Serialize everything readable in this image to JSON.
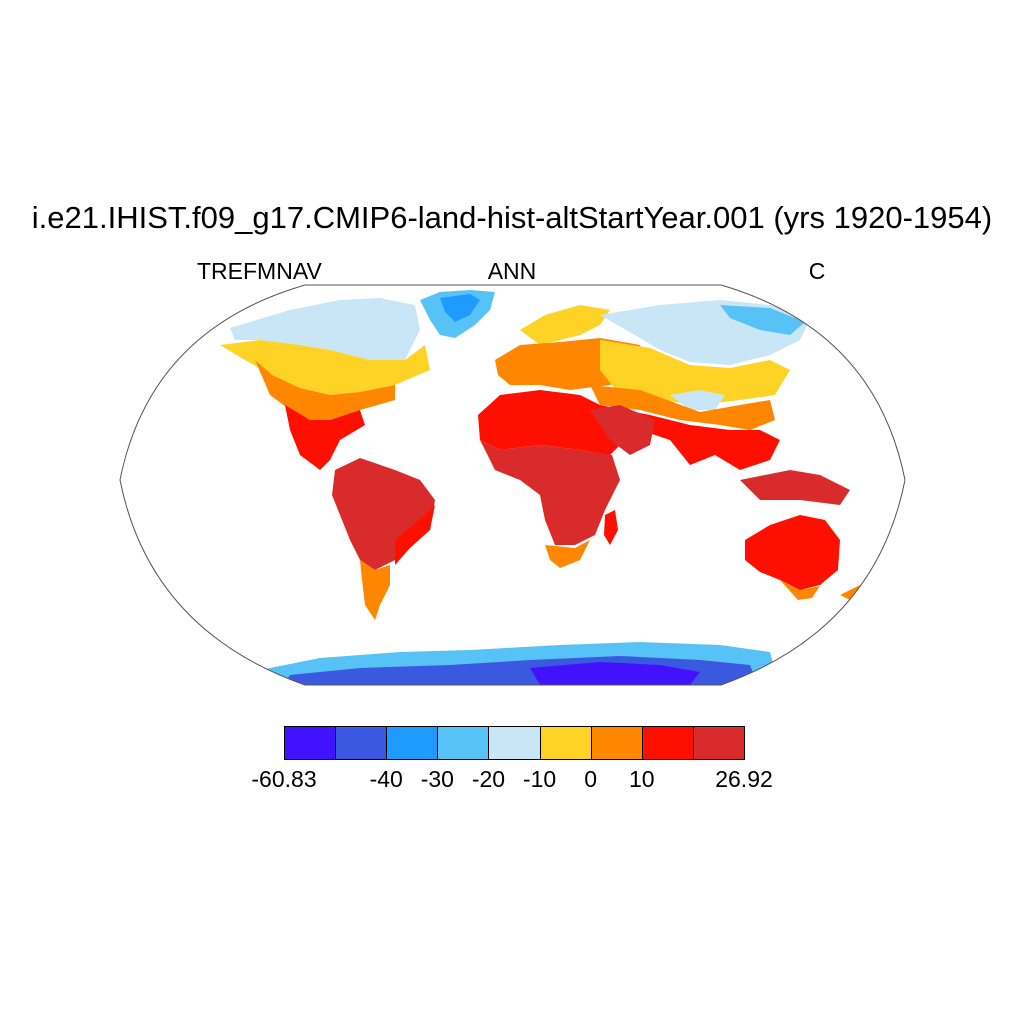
{
  "title": "i.e21.IHIST.f09_g17.CMIP6-land-hist-altStartYear.001 (yrs 1920-1954)",
  "subtitle_left": "TREFMNAV",
  "subtitle_center": "ANN",
  "subtitle_right": "C",
  "colorbar": {
    "colors": [
      "#4212ff",
      "#3b59e0",
      "#1e9bff",
      "#57c2f5",
      "#c8e6f5",
      "#ffd326",
      "#ff8700",
      "#ff0f00",
      "#d92b2b"
    ],
    "labels": [
      "-60.83",
      "-40",
      "-30",
      "-20",
      "-10",
      "0",
      "10",
      "26.92"
    ],
    "label_boundary_index": [
      0,
      2,
      3,
      4,
      5,
      6,
      7,
      9
    ]
  },
  "map": {
    "projection": "robinson",
    "ocean_color": "#ffffff",
    "border_color": "#555555"
  }
}
